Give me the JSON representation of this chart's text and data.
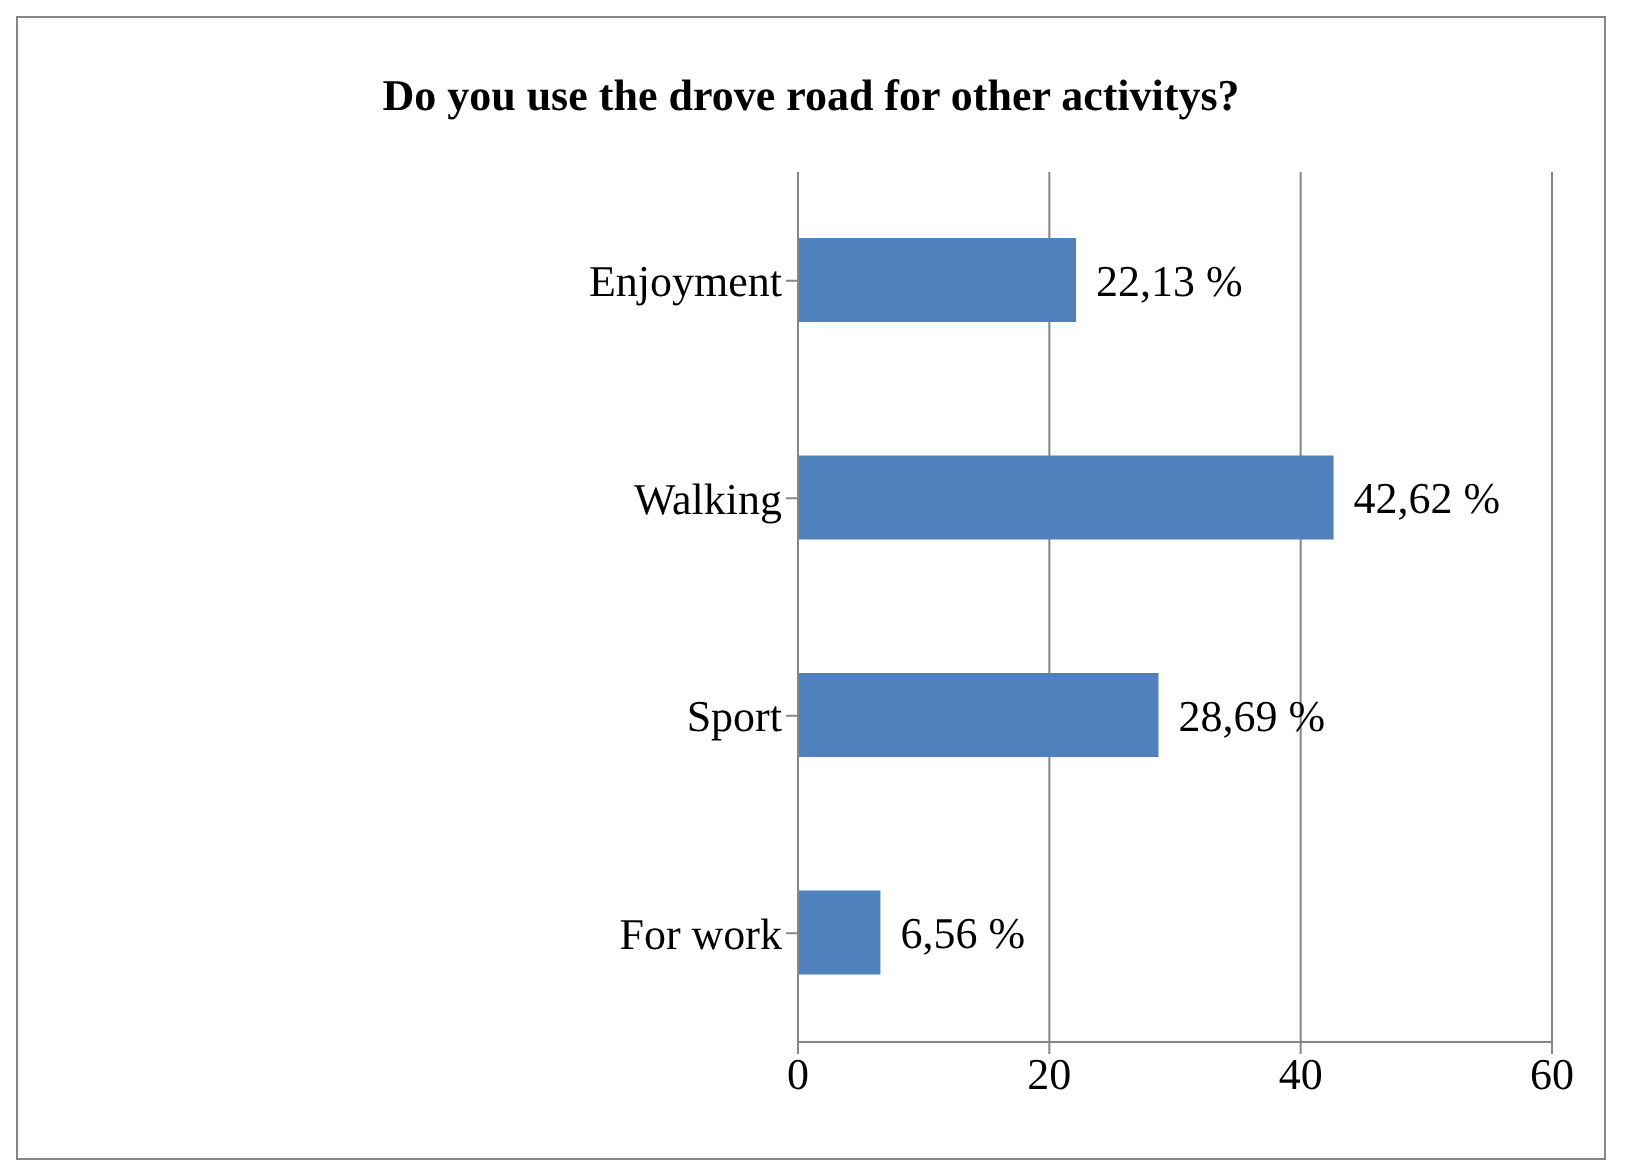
{
  "chart_data": {
    "type": "bar",
    "orientation": "horizontal",
    "title": "Do you use the drove road for other activitys?",
    "categories": [
      "Enjoyment",
      "Walking",
      "Sport",
      "For work"
    ],
    "values": [
      22.13,
      42.62,
      28.69,
      6.56
    ],
    "value_labels": [
      "22,13 %",
      "42,62 %",
      "28,69 %",
      "6,56 %"
    ],
    "color": "#4f81bd",
    "xlim": [
      0,
      60
    ],
    "xticks": [
      0,
      20,
      40,
      60
    ],
    "grid": "x"
  }
}
